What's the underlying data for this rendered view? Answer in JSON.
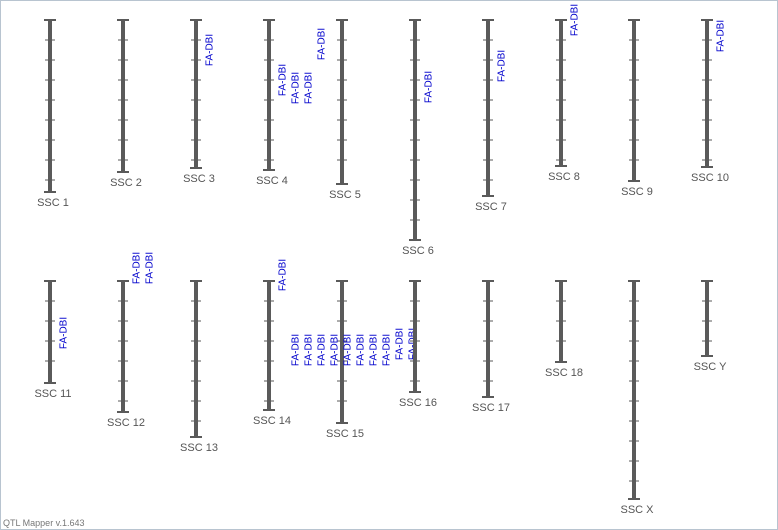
{
  "chromosomes": [
    {
      "label": "SSC 1",
      "qtls": []
    },
    {
      "label": "SSC 2",
      "qtls": []
    },
    {
      "label": "SSC 3",
      "qtls": [
        "FA-DBI"
      ]
    },
    {
      "label": "SSC 4",
      "qtls": [
        "FA-DBI",
        "FA-DBI",
        "FA-DBI"
      ]
    },
    {
      "label": "SSC 5",
      "qtls": [
        "FA-DBI"
      ]
    },
    {
      "label": "SSC 6",
      "qtls": [
        "FA-DBI"
      ]
    },
    {
      "label": "SSC 7",
      "qtls": [
        "FA-DBI"
      ]
    },
    {
      "label": "SSC 8",
      "qtls": [
        "FA-DBI"
      ]
    },
    {
      "label": "SSC 9",
      "qtls": []
    },
    {
      "label": "SSC 10",
      "qtls": [
        "FA-DBI"
      ]
    },
    {
      "label": "SSC 11",
      "qtls": [
        "FA-DBI"
      ]
    },
    {
      "label": "SSC 12",
      "qtls": [
        "FA-DBI",
        "FA-DBI"
      ]
    },
    {
      "label": "SSC 13",
      "qtls": []
    },
    {
      "label": "SSC 14",
      "qtls": [
        "FA-DBI"
      ]
    },
    {
      "label": "SSC 15",
      "qtls": [
        "FA-DBI",
        "FA-DBI",
        "FA-DBI",
        "FA-DBI",
        "FA-DBI",
        "FA-DBI",
        "FA-DBI",
        "FA-DBI",
        "FA-DBI",
        "FA-DBI"
      ]
    },
    {
      "label": "SSC 16",
      "qtls": []
    },
    {
      "label": "SSC 17",
      "qtls": []
    },
    {
      "label": "SSC 18",
      "qtls": []
    },
    {
      "label": "SSC X",
      "qtls": []
    },
    {
      "label": "SSC Y",
      "qtls": []
    }
  ],
  "footer": "QTL Mapper v.1.643"
}
